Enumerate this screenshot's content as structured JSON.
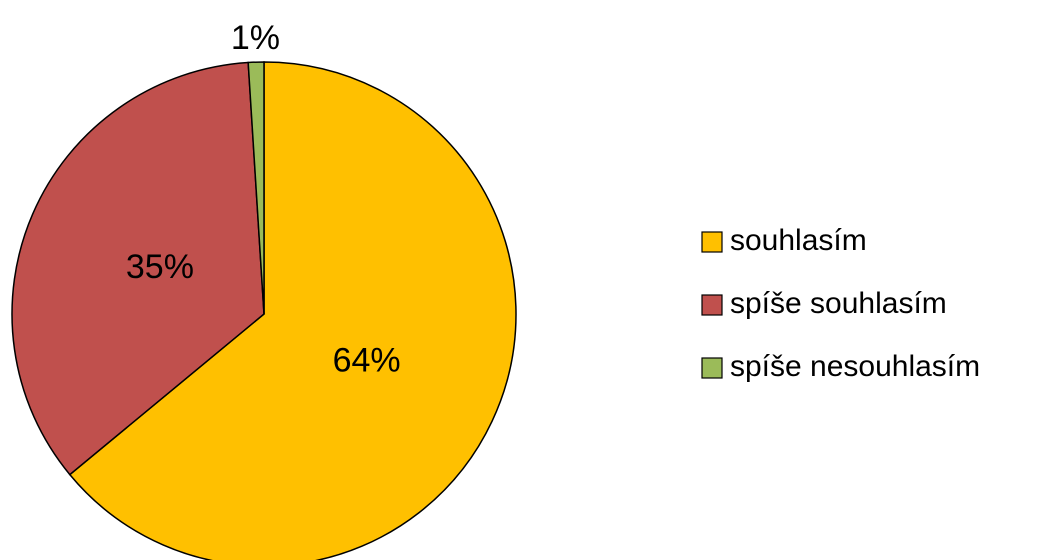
{
  "chart_data": {
    "type": "pie",
    "categories": [
      "souhlasím",
      "spíše souhlasím",
      "spíše nesouhlasím"
    ],
    "values": [
      64,
      35,
      1
    ],
    "value_labels": [
      "64%",
      "35%",
      "1%"
    ],
    "colors": [
      "#ffc000",
      "#c0504d",
      "#9bbb59"
    ],
    "legend": "right"
  }
}
